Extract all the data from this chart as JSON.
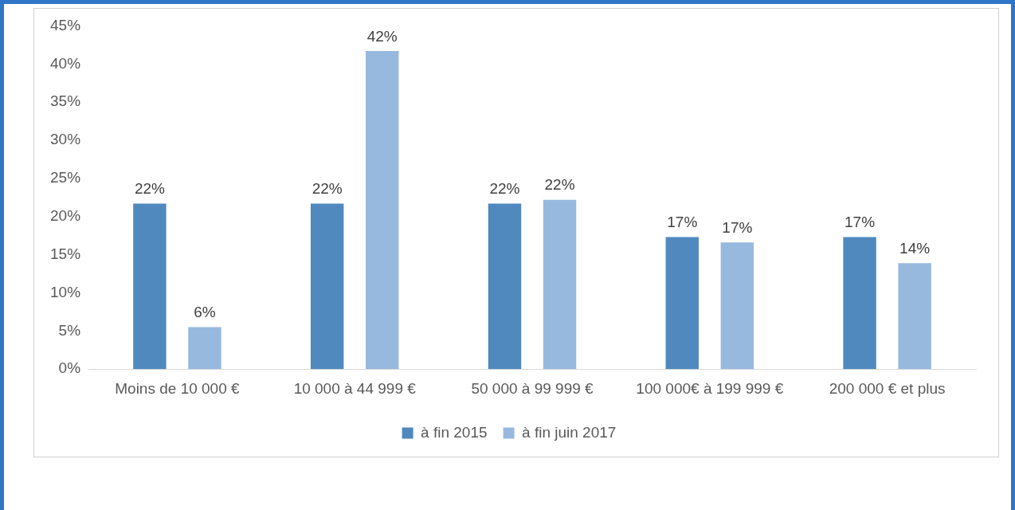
{
  "chart_data": {
    "type": "bar",
    "categories": [
      "Moins de 10 000 €",
      "10 000 à 44 999 €",
      "50 000 à 99 999 €",
      "100 000€ à 199 999 €",
      "200 000 € et plus"
    ],
    "series": [
      {
        "name": "à fin 2015",
        "color": "#4f89bd",
        "values": [
          21.7,
          21.7,
          21.7,
          17.3,
          17.3
        ],
        "value_labels": [
          "22%",
          "22%",
          "22%",
          "17%",
          "17%"
        ]
      },
      {
        "name": "à fin juin 2017",
        "color": "#98b9de",
        "values": [
          5.5,
          41.7,
          22.2,
          16.6,
          13.9
        ],
        "value_labels": [
          "6%",
          "42%",
          "22%",
          "17%",
          "14%"
        ]
      }
    ],
    "ylim": [
      0,
      45
    ],
    "yticks": [
      {
        "value": 0,
        "label": "0%"
      },
      {
        "value": 5,
        "label": "5%"
      },
      {
        "value": 10,
        "label": "10%"
      },
      {
        "value": 15,
        "label": "15%"
      },
      {
        "value": 20,
        "label": "20%"
      },
      {
        "value": 25,
        "label": "25%"
      },
      {
        "value": 30,
        "label": "30%"
      },
      {
        "value": 35,
        "label": "35%"
      },
      {
        "value": 40,
        "label": "40%"
      },
      {
        "value": 45,
        "label": "45%"
      }
    ],
    "grid": false,
    "legend": "bottom"
  }
}
